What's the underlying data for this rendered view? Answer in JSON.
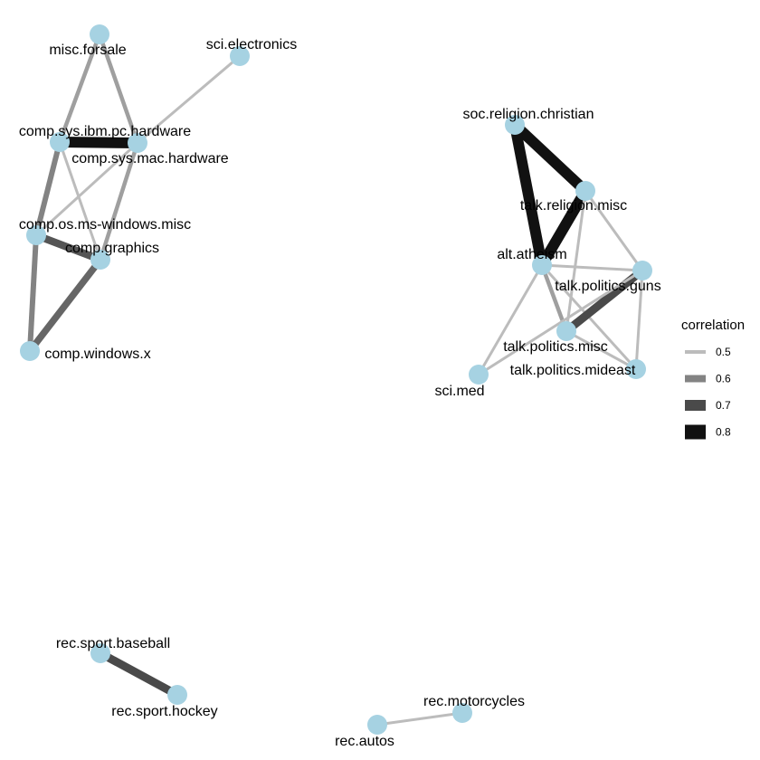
{
  "graph": {
    "nodes": [
      {
        "id": "misc.forsale"
      },
      {
        "id": "sci.electronics"
      },
      {
        "id": "comp.sys.ibm.pc.hardware"
      },
      {
        "id": "comp.sys.mac.hardware"
      },
      {
        "id": "comp.os.ms-windows.misc"
      },
      {
        "id": "comp.graphics"
      },
      {
        "id": "comp.windows.x"
      },
      {
        "id": "soc.religion.christian"
      },
      {
        "id": "talk.religion.misc"
      },
      {
        "id": "alt.atheism"
      },
      {
        "id": "talk.politics.guns"
      },
      {
        "id": "talk.politics.misc"
      },
      {
        "id": "talk.politics.mideast"
      },
      {
        "id": "sci.med"
      },
      {
        "id": "rec.sport.baseball"
      },
      {
        "id": "rec.sport.hockey"
      },
      {
        "id": "rec.motorcycles"
      },
      {
        "id": "rec.autos"
      }
    ],
    "edges": [
      {
        "from": "comp.sys.ibm.pc.hardware",
        "to": "comp.sys.mac.hardware",
        "correlation": 0.8
      },
      {
        "from": "misc.forsale",
        "to": "comp.sys.ibm.pc.hardware",
        "correlation": 0.55
      },
      {
        "from": "misc.forsale",
        "to": "comp.sys.mac.hardware",
        "correlation": 0.55
      },
      {
        "from": "sci.electronics",
        "to": "comp.sys.mac.hardware",
        "correlation": 0.5
      },
      {
        "from": "comp.sys.ibm.pc.hardware",
        "to": "comp.os.ms-windows.misc",
        "correlation": 0.6
      },
      {
        "from": "comp.sys.ibm.pc.hardware",
        "to": "comp.graphics",
        "correlation": 0.5
      },
      {
        "from": "comp.sys.mac.hardware",
        "to": "comp.graphics",
        "correlation": 0.55
      },
      {
        "from": "comp.sys.mac.hardware",
        "to": "comp.os.ms-windows.misc",
        "correlation": 0.45
      },
      {
        "from": "comp.os.ms-windows.misc",
        "to": "comp.graphics",
        "correlation": 0.68
      },
      {
        "from": "comp.os.ms-windows.misc",
        "to": "comp.windows.x",
        "correlation": 0.6
      },
      {
        "from": "comp.graphics",
        "to": "comp.windows.x",
        "correlation": 0.65
      },
      {
        "from": "soc.religion.christian",
        "to": "talk.religion.misc",
        "correlation": 0.85
      },
      {
        "from": "soc.religion.christian",
        "to": "alt.atheism",
        "correlation": 0.85
      },
      {
        "from": "talk.religion.misc",
        "to": "alt.atheism",
        "correlation": 0.85
      },
      {
        "from": "talk.religion.misc",
        "to": "talk.politics.guns",
        "correlation": 0.5
      },
      {
        "from": "talk.religion.misc",
        "to": "talk.politics.misc",
        "correlation": 0.5
      },
      {
        "from": "alt.atheism",
        "to": "talk.politics.guns",
        "correlation": 0.5
      },
      {
        "from": "alt.atheism",
        "to": "talk.politics.misc",
        "correlation": 0.55
      },
      {
        "from": "alt.atheism",
        "to": "talk.politics.mideast",
        "correlation": 0.5
      },
      {
        "from": "alt.atheism",
        "to": "sci.med",
        "correlation": 0.5
      },
      {
        "from": "talk.politics.guns",
        "to": "talk.politics.misc",
        "correlation": 0.7
      },
      {
        "from": "talk.politics.guns",
        "to": "talk.politics.mideast",
        "correlation": 0.5
      },
      {
        "from": "talk.politics.guns",
        "to": "sci.med",
        "correlation": 0.5
      },
      {
        "from": "talk.politics.misc",
        "to": "talk.politics.mideast",
        "correlation": 0.5
      },
      {
        "from": "rec.sport.baseball",
        "to": "rec.sport.hockey",
        "correlation": 0.7
      },
      {
        "from": "rec.motorcycles",
        "to": "rec.autos",
        "correlation": 0.5
      }
    ]
  },
  "legend": {
    "title": "correlation",
    "items": [
      {
        "label": "0.5",
        "value": 0.5
      },
      {
        "label": "0.6",
        "value": 0.6
      },
      {
        "label": "0.7",
        "value": 0.7
      },
      {
        "label": "0.8",
        "value": 0.8
      }
    ]
  },
  "colors": {
    "node": "#a6d2e2",
    "edge_low": "#bcbcbc",
    "edge_high": "#111111"
  }
}
